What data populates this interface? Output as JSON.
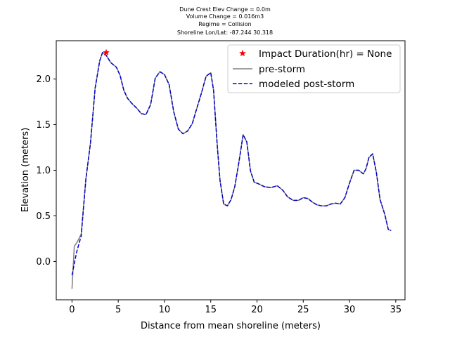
{
  "chart_data": {
    "type": "line",
    "title_lines": [
      "Dune Crest Elev Change = 0.0m",
      "Volume Change = 0.016m3",
      "Regime = Collision",
      "Shoreline Lon/Lat: -87.244 30.318"
    ],
    "xlabel": "Distance from mean shoreline (meters)",
    "ylabel": "Elevation (meters)",
    "xlim": [
      -1.7,
      36.0
    ],
    "ylim": [
      -0.42,
      2.42
    ],
    "xticks": [
      0,
      5,
      10,
      15,
      20,
      25,
      30,
      35
    ],
    "yticks": [
      0.0,
      0.5,
      1.0,
      1.5,
      2.0
    ],
    "xtick_labels": [
      "0",
      "5",
      "10",
      "15",
      "20",
      "25",
      "30",
      "35"
    ],
    "ytick_labels": [
      "0.0",
      "0.5",
      "1.0",
      "1.5",
      "2.0"
    ],
    "legend_position": "upper right",
    "series": [
      {
        "name": "pre-storm",
        "color": "#808080",
        "style": "solid",
        "x": [
          0.0,
          0.25,
          0.5,
          1.0,
          1.5,
          2.0,
          2.5,
          3.0,
          3.3,
          3.7,
          4.2,
          4.8,
          5.2,
          5.6,
          6.0,
          6.5,
          7.0,
          7.5,
          8.0,
          8.5,
          9.0,
          9.5,
          10.0,
          10.5,
          11.0,
          11.5,
          12.0,
          12.5,
          13.0,
          13.5,
          14.0,
          14.5,
          15.0,
          15.3,
          15.7,
          16.0,
          16.4,
          16.8,
          17.2,
          17.6,
          18.0,
          18.5,
          18.9,
          19.3,
          19.7,
          20.2,
          20.8,
          21.5,
          22.2,
          22.8,
          23.3,
          23.9,
          24.5,
          25.0,
          25.5,
          26.0,
          26.5,
          27.0,
          27.5,
          28.0,
          28.5,
          29.0,
          29.5,
          30.0,
          30.5,
          31.0,
          31.5,
          31.8,
          32.1,
          32.5,
          32.9,
          33.3,
          33.8,
          34.2,
          34.5
        ],
        "y": [
          -0.3,
          0.17,
          0.2,
          0.3,
          0.9,
          1.3,
          1.9,
          2.2,
          2.29,
          2.26,
          2.18,
          2.13,
          2.04,
          1.88,
          1.79,
          1.73,
          1.68,
          1.62,
          1.61,
          1.72,
          2.01,
          2.08,
          2.05,
          1.94,
          1.64,
          1.45,
          1.4,
          1.43,
          1.51,
          1.68,
          1.85,
          2.03,
          2.07,
          1.88,
          1.28,
          0.89,
          0.63,
          0.61,
          0.68,
          0.82,
          1.06,
          1.39,
          1.31,
          0.99,
          0.87,
          0.85,
          0.82,
          0.81,
          0.83,
          0.78,
          0.71,
          0.67,
          0.67,
          0.7,
          0.69,
          0.65,
          0.62,
          0.61,
          0.61,
          0.63,
          0.64,
          0.63,
          0.7,
          0.86,
          1.0,
          1.0,
          0.96,
          1.02,
          1.14,
          1.18,
          0.98,
          0.68,
          0.52,
          0.35,
          0.34
        ]
      },
      {
        "name": "modeled post-storm",
        "color": "#0000cc",
        "style": "dashed",
        "x": [
          0.0,
          0.5,
          1.0,
          1.5,
          2.0,
          2.5,
          3.0,
          3.3,
          3.7,
          4.2,
          4.8,
          5.2,
          5.6,
          6.0,
          6.5,
          7.0,
          7.5,
          8.0,
          8.5,
          9.0,
          9.5,
          10.0,
          10.5,
          11.0,
          11.5,
          12.0,
          12.5,
          13.0,
          13.5,
          14.0,
          14.5,
          15.0,
          15.3,
          15.7,
          16.0,
          16.4,
          16.8,
          17.2,
          17.6,
          18.0,
          18.5,
          18.9,
          19.3,
          19.7,
          20.2,
          20.8,
          21.5,
          22.2,
          22.8,
          23.3,
          23.9,
          24.5,
          25.0,
          25.5,
          26.0,
          26.5,
          27.0,
          27.5,
          28.0,
          28.5,
          29.0,
          29.5,
          30.0,
          30.5,
          31.0,
          31.5,
          31.8,
          32.1,
          32.5,
          32.9,
          33.3,
          33.8,
          34.2,
          34.5
        ],
        "y": [
          -0.15,
          0.1,
          0.28,
          0.9,
          1.3,
          1.9,
          2.2,
          2.29,
          2.26,
          2.18,
          2.13,
          2.04,
          1.88,
          1.79,
          1.73,
          1.68,
          1.62,
          1.61,
          1.72,
          2.01,
          2.08,
          2.05,
          1.94,
          1.64,
          1.45,
          1.4,
          1.43,
          1.51,
          1.68,
          1.85,
          2.03,
          2.07,
          1.88,
          1.28,
          0.89,
          0.63,
          0.61,
          0.68,
          0.82,
          1.06,
          1.39,
          1.31,
          0.99,
          0.87,
          0.85,
          0.82,
          0.81,
          0.83,
          0.78,
          0.71,
          0.67,
          0.67,
          0.7,
          0.69,
          0.65,
          0.62,
          0.61,
          0.61,
          0.63,
          0.64,
          0.63,
          0.7,
          0.86,
          1.0,
          1.0,
          0.96,
          1.02,
          1.14,
          1.18,
          0.98,
          0.68,
          0.52,
          0.35,
          0.34
        ]
      }
    ],
    "markers": [
      {
        "name": "Impact Duration(hr) = None",
        "x": 3.7,
        "y": 2.29,
        "color": "#ff0000",
        "symbol": "star"
      }
    ],
    "legend": [
      "Impact Duration(hr) = None",
      "pre-storm",
      "modeled post-storm"
    ]
  }
}
